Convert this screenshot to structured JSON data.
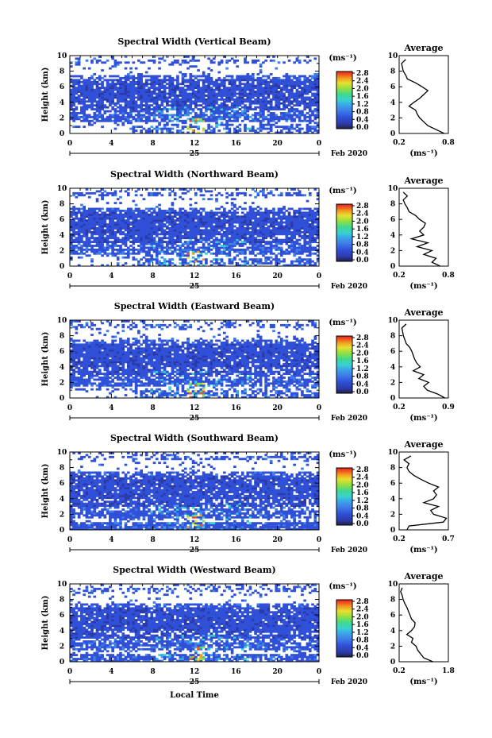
{
  "colors": {
    "colorbar": [
      "#202040",
      "#2b3aa8",
      "#3050d8",
      "#3f7fe8",
      "#38a8e8",
      "#3ad0d0",
      "#40d890",
      "#90e040",
      "#e8e030",
      "#f0a020",
      "#f05020",
      "#e82020"
    ],
    "background": "#ffffff"
  },
  "common": {
    "unit_label": "(ms⁻¹)",
    "colorbar_ticks": [
      "0.0",
      "0.4",
      "0.8",
      "1.2",
      "1.6",
      "2.0",
      "2.4",
      "2.8"
    ],
    "x_ticks": [
      "0",
      "4",
      "8",
      "12",
      "16",
      "20",
      "0"
    ],
    "day_label": "25",
    "month_label": "Feb 2020",
    "y_label": "Height (km)",
    "y_ticks": [
      "0",
      "2",
      "4",
      "6",
      "8",
      "10"
    ],
    "average_title": "Average",
    "average_xlabel": "(ms⁻¹)",
    "x_axis_label": "Local Time"
  },
  "chart_data": [
    {
      "type": "heatmap",
      "title": "Spectral Width (Vertical Beam)",
      "xlim": [
        0,
        24
      ],
      "ylim": [
        0,
        10
      ],
      "clim": [
        0.0,
        3.0
      ],
      "avg_xlim": [
        0.2,
        0.8
      ],
      "avg_ticks": [
        "0.2",
        "0.8"
      ],
      "average_profile": {
        "height_km": [
          0,
          0.5,
          1,
          1.5,
          2,
          2.5,
          3,
          3.5,
          4,
          4.5,
          5,
          5.5,
          6,
          6.5,
          7,
          7.5,
          8,
          8.5,
          9,
          9.5
        ],
        "value": [
          0.75,
          0.65,
          0.55,
          0.5,
          0.45,
          0.42,
          0.4,
          0.32,
          0.38,
          0.45,
          0.5,
          0.55,
          0.48,
          0.4,
          0.3,
          0.28,
          0.25,
          0.24,
          0.23,
          0.28
        ]
      }
    },
    {
      "type": "heatmap",
      "title": "Spectral Width (Northward Beam)",
      "xlim": [
        0,
        24
      ],
      "ylim": [
        0,
        10
      ],
      "clim": [
        0.0,
        3.0
      ],
      "avg_xlim": [
        0.2,
        0.8
      ],
      "avg_ticks": [
        "0.2",
        "0.8"
      ],
      "average_profile": {
        "height_km": [
          0,
          0.5,
          1,
          1.5,
          2,
          2.5,
          3,
          3.5,
          4,
          4.5,
          5,
          5.5,
          6,
          6.5,
          7,
          7.5,
          8,
          8.5,
          9,
          9.5
        ],
        "value": [
          0.7,
          0.6,
          0.65,
          0.5,
          0.6,
          0.42,
          0.55,
          0.35,
          0.5,
          0.45,
          0.5,
          0.52,
          0.45,
          0.4,
          0.32,
          0.3,
          0.27,
          0.25,
          0.3,
          0.25
        ]
      }
    },
    {
      "type": "heatmap",
      "title": "Spectral Width (Eastward Beam)",
      "xlim": [
        0,
        24
      ],
      "ylim": [
        0,
        10
      ],
      "clim": [
        0.0,
        3.0
      ],
      "avg_xlim": [
        0.2,
        0.9
      ],
      "avg_ticks": [
        "0.2",
        "0.9"
      ],
      "average_profile": {
        "height_km": [
          0,
          0.5,
          1,
          1.5,
          2,
          2.5,
          3,
          3.5,
          4,
          4.5,
          5,
          5.5,
          6,
          6.5,
          7,
          7.5,
          8,
          8.5,
          9,
          9.5
        ],
        "value": [
          0.85,
          0.75,
          0.6,
          0.55,
          0.62,
          0.48,
          0.55,
          0.4,
          0.5,
          0.45,
          0.42,
          0.4,
          0.38,
          0.35,
          0.3,
          0.28,
          0.26,
          0.25,
          0.24,
          0.3
        ]
      }
    },
    {
      "type": "heatmap",
      "title": "Spectral Width (Southward Beam)",
      "xlim": [
        0,
        24
      ],
      "ylim": [
        0,
        10
      ],
      "clim": [
        0.0,
        3.0
      ],
      "avg_xlim": [
        0.2,
        0.7
      ],
      "avg_ticks": [
        "0.2",
        "0.7"
      ],
      "average_profile": {
        "height_km": [
          0,
          0.5,
          1,
          1.5,
          2,
          2.5,
          3,
          3.5,
          4,
          4.5,
          5,
          5.5,
          6,
          6.5,
          7,
          7.5,
          8,
          8.5,
          9,
          9.5
        ],
        "value": [
          0.28,
          0.3,
          0.65,
          0.68,
          0.55,
          0.52,
          0.6,
          0.45,
          0.55,
          0.58,
          0.55,
          0.6,
          0.5,
          0.42,
          0.35,
          0.3,
          0.28,
          0.3,
          0.25,
          0.32
        ]
      }
    },
    {
      "type": "heatmap",
      "title": "Spectral Width (Westward Beam)",
      "xlim": [
        0,
        24
      ],
      "ylim": [
        0,
        10
      ],
      "clim": [
        0.0,
        3.0
      ],
      "avg_xlim": [
        0.2,
        1.8
      ],
      "avg_ticks": [
        "0.2",
        "1.8"
      ],
      "average_profile": {
        "height_km": [
          0,
          0.5,
          1,
          1.5,
          2,
          2.5,
          3,
          3.5,
          4,
          4.5,
          5,
          5.5,
          6,
          6.5,
          7,
          7.5,
          8,
          8.5,
          9,
          9.5
        ],
        "value": [
          1.3,
          1.0,
          0.9,
          0.8,
          0.75,
          0.6,
          0.65,
          0.45,
          0.6,
          0.7,
          0.72,
          0.6,
          0.55,
          0.5,
          0.45,
          0.38,
          0.33,
          0.3,
          0.25,
          0.3
        ]
      }
    }
  ]
}
